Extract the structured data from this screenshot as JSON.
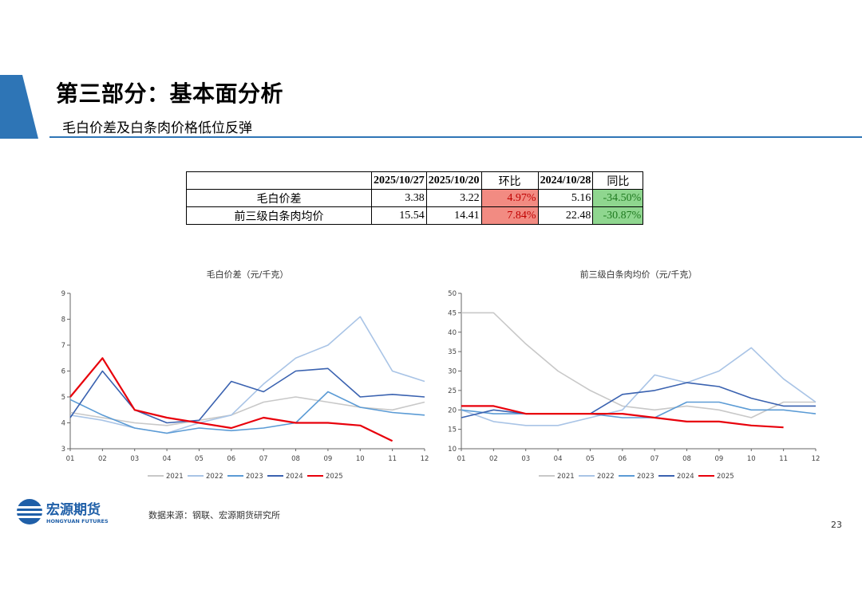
{
  "header": {
    "title": "第三部分：基本面分析",
    "subtitle": "毛白价差及白条肉价格低位反弹",
    "accent": "#2e75b6"
  },
  "table": {
    "headers": [
      "",
      "2025/10/27",
      "2025/10/20",
      "环比",
      "2024/10/28",
      "同比"
    ],
    "rows": [
      {
        "label": "毛白价差",
        "v1": "3.38",
        "v2": "3.22",
        "mom": "4.97%",
        "v3": "5.16",
        "yoy": "-34.50%"
      },
      {
        "label": "前三级白条肉均价",
        "v1": "15.54",
        "v2": "14.41",
        "mom": "7.84%",
        "v3": "22.48",
        "yoy": "-30.87%"
      }
    ],
    "up_color": "#f28b82",
    "down_color": "#8fd68f"
  },
  "chart_data": [
    {
      "type": "line",
      "title": "毛白价差（元/千克）",
      "x_ticks": [
        "01",
        "02",
        "03",
        "04",
        "05",
        "06",
        "07",
        "08",
        "09",
        "10",
        "11",
        "12"
      ],
      "ylim": [
        3,
        9
      ],
      "y_ticks": [
        3,
        4,
        5,
        6,
        7,
        8,
        9
      ],
      "legend_position": "bottom",
      "series": [
        {
          "name": "2021",
          "color": "#c8c8c8",
          "values": [
            4.4,
            4.2,
            4.0,
            3.9,
            4.1,
            4.3,
            4.8,
            5.0,
            4.8,
            4.6,
            4.5,
            4.8
          ]
        },
        {
          "name": "2022",
          "color": "#a9c4e6",
          "values": [
            4.3,
            4.1,
            3.8,
            3.6,
            4.0,
            4.3,
            5.5,
            6.5,
            7.0,
            8.1,
            6.0,
            5.6
          ]
        },
        {
          "name": "2023",
          "color": "#5b9bd5",
          "values": [
            4.9,
            4.3,
            3.8,
            3.6,
            3.8,
            3.7,
            3.8,
            4.0,
            5.2,
            4.6,
            4.4,
            4.3
          ]
        },
        {
          "name": "2024",
          "color": "#3a62b0",
          "values": [
            4.2,
            6.0,
            4.5,
            4.0,
            4.1,
            5.6,
            5.2,
            6.0,
            6.1,
            5.0,
            5.1,
            5.0
          ]
        },
        {
          "name": "2025",
          "color": "#e8000b",
          "values": [
            5.0,
            6.5,
            4.5,
            4.2,
            4.0,
            3.8,
            4.2,
            4.0,
            4.0,
            3.9,
            3.3
          ]
        }
      ]
    },
    {
      "type": "line",
      "title": "前三级白条肉均价（元/千克）",
      "x_ticks": [
        "01",
        "02",
        "03",
        "04",
        "05",
        "06",
        "07",
        "08",
        "09",
        "10",
        "11",
        "12"
      ],
      "ylim": [
        10,
        50
      ],
      "y_ticks": [
        10,
        15,
        20,
        25,
        30,
        35,
        40,
        45,
        50
      ],
      "legend_position": "bottom",
      "series": [
        {
          "name": "2021",
          "color": "#c8c8c8",
          "values": [
            45,
            45,
            37,
            30,
            25,
            21,
            20,
            21,
            20,
            18,
            22,
            22
          ]
        },
        {
          "name": "2022",
          "color": "#a9c4e6",
          "values": [
            20,
            17,
            16,
            16,
            18,
            20,
            29,
            27,
            30,
            36,
            28,
            22
          ]
        },
        {
          "name": "2023",
          "color": "#5b9bd5",
          "values": [
            20,
            19,
            19,
            19,
            19,
            18,
            18,
            22,
            22,
            20,
            20,
            19
          ]
        },
        {
          "name": "2024",
          "color": "#3a62b0",
          "values": [
            18,
            20,
            19,
            19,
            19,
            24,
            25,
            27,
            26,
            23,
            21,
            21
          ]
        },
        {
          "name": "2025",
          "color": "#e8000b",
          "values": [
            21,
            21,
            19,
            19,
            19,
            19,
            18,
            17,
            17,
            16,
            15.5
          ]
        }
      ]
    }
  ],
  "footer": {
    "logo_name": "宏源期货",
    "logo_sub": "HONGYUAN FUTURES",
    "source": "数据来源：钢联、宏源期货研究所",
    "page": "23"
  }
}
